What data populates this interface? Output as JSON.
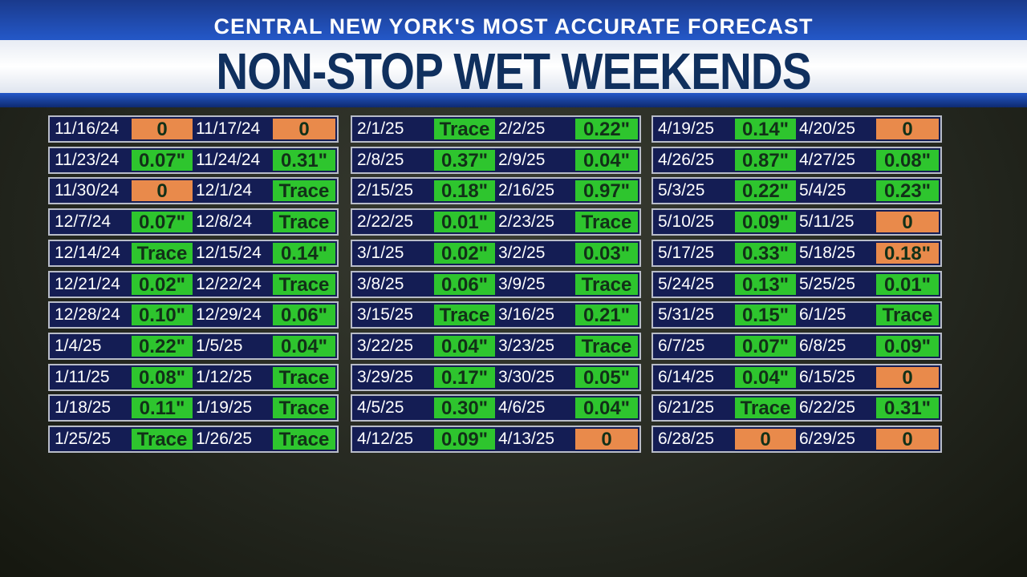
{
  "header": {
    "subtitle": "CENTRAL NEW YORK'S MOST ACCURATE FORECAST",
    "title": "NON-STOP WET WEEKENDS"
  },
  "table": {
    "columns": [
      {
        "rows": [
          [
            "11/16/24",
            "0",
            "#e98a4b",
            "11/17/24",
            "0",
            "#e98a4b"
          ],
          [
            "11/23/24",
            "0.07\"",
            "#2ec52e",
            "11/24/24",
            "0.31\"",
            "#2ec52e"
          ],
          [
            "11/30/24",
            "0",
            "#e98a4b",
            "12/1/24",
            "Trace",
            "#2ec52e"
          ],
          [
            "12/7/24",
            "0.07\"",
            "#2ec52e",
            "12/8/24",
            "Trace",
            "#2ec52e"
          ],
          [
            "12/14/24",
            "Trace",
            "#2ec52e",
            "12/15/24",
            "0.14\"",
            "#2ec52e"
          ],
          [
            "12/21/24",
            "0.02\"",
            "#2ec52e",
            "12/22/24",
            "Trace",
            "#2ec52e"
          ],
          [
            "12/28/24",
            "0.10\"",
            "#2ec52e",
            "12/29/24",
            "0.06\"",
            "#2ec52e"
          ],
          [
            "1/4/25",
            "0.22\"",
            "#2ec52e",
            "1/5/25",
            "0.04\"",
            "#2ec52e"
          ],
          [
            "1/11/25",
            "0.08\"",
            "#2ec52e",
            "1/12/25",
            "Trace",
            "#2ec52e"
          ],
          [
            "1/18/25",
            "0.11\"",
            "#2ec52e",
            "1/19/25",
            "Trace",
            "#2ec52e"
          ],
          [
            "1/25/25",
            "Trace",
            "#2ec52e",
            "1/26/25",
            "Trace",
            "#2ec52e"
          ]
        ]
      },
      {
        "rows": [
          [
            "2/1/25",
            "Trace",
            "#2ec52e",
            "2/2/25",
            "0.22\"",
            "#2ec52e"
          ],
          [
            "2/8/25",
            "0.37\"",
            "#2ec52e",
            "2/9/25",
            "0.04\"",
            "#2ec52e"
          ],
          [
            "2/15/25",
            "0.18\"",
            "#2ec52e",
            "2/16/25",
            "0.97\"",
            "#2ec52e"
          ],
          [
            "2/22/25",
            "0.01\"",
            "#2ec52e",
            "2/23/25",
            "Trace",
            "#2ec52e"
          ],
          [
            "3/1/25",
            "0.02\"",
            "#2ec52e",
            "3/2/25",
            "0.03\"",
            "#2ec52e"
          ],
          [
            "3/8/25",
            "0.06\"",
            "#2ec52e",
            "3/9/25",
            "Trace",
            "#2ec52e"
          ],
          [
            "3/15/25",
            "Trace",
            "#2ec52e",
            "3/16/25",
            "0.21\"",
            "#2ec52e"
          ],
          [
            "3/22/25",
            "0.04\"",
            "#2ec52e",
            "3/23/25",
            "Trace",
            "#2ec52e"
          ],
          [
            "3/29/25",
            "0.17\"",
            "#2ec52e",
            "3/30/25",
            "0.05\"",
            "#2ec52e"
          ],
          [
            "4/5/25",
            "0.30\"",
            "#2ec52e",
            "4/6/25",
            "0.04\"",
            "#2ec52e"
          ],
          [
            "4/12/25",
            "0.09\"",
            "#2ec52e",
            "4/13/25",
            "0",
            "#e98a4b"
          ]
        ]
      },
      {
        "rows": [
          [
            "4/19/25",
            "0.14\"",
            "#2ec52e",
            "4/20/25",
            "0",
            "#e98a4b"
          ],
          [
            "4/26/25",
            "0.87\"",
            "#2ec52e",
            "4/27/25",
            "0.08\"",
            "#2ec52e"
          ],
          [
            "5/3/25",
            "0.22\"",
            "#2ec52e",
            "5/4/25",
            "0.23\"",
            "#2ec52e"
          ],
          [
            "5/10/25",
            "0.09\"",
            "#2ec52e",
            "5/11/25",
            "0",
            "#e98a4b"
          ],
          [
            "5/17/25",
            "0.33\"",
            "#2ec52e",
            "5/18/25",
            "0.18\"",
            "#e98a4b"
          ],
          [
            "5/24/25",
            "0.13\"",
            "#2ec52e",
            "5/25/25",
            "0.01\"",
            "#2ec52e"
          ],
          [
            "5/31/25",
            "0.15\"",
            "#2ec52e",
            "6/1/25",
            "Trace",
            "#2ec52e"
          ],
          [
            "6/7/25",
            "0.07\"",
            "#2ec52e",
            "6/8/25",
            "0.09\"",
            "#2ec52e"
          ],
          [
            "6/14/25",
            "0.04\"",
            "#2ec52e",
            "6/15/25",
            "0",
            "#e98a4b"
          ],
          [
            "6/21/25",
            "Trace",
            "#2ec52e",
            "6/22/25",
            "0.31\"",
            "#2ec52e"
          ],
          [
            "6/28/25",
            "0",
            "#e98a4b",
            "6/29/25",
            "0",
            "#e98a4b"
          ]
        ]
      }
    ]
  }
}
